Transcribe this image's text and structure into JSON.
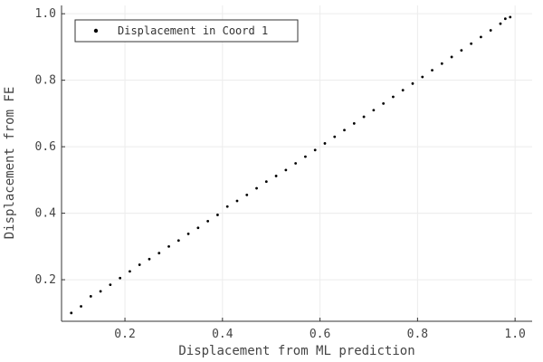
{
  "chart_data": {
    "type": "scatter",
    "title": "",
    "xlabel": "Displacement from ML prediction",
    "ylabel": "Displacement from FE",
    "xlim": [
      0.07,
      1.035
    ],
    "ylim": [
      0.075,
      1.025
    ],
    "xticks": [
      0.2,
      0.4,
      0.6,
      0.8,
      1.0
    ],
    "xtick_labels": [
      "0.2",
      "0.4",
      "0.6",
      "0.8",
      "1.0"
    ],
    "yticks": [
      0.2,
      0.4,
      0.6,
      0.8,
      1.0
    ],
    "ytick_labels": [
      "0.2",
      "0.4",
      "0.6",
      "0.8",
      "1.0"
    ],
    "grid": true,
    "legend_position": "top-left",
    "series": [
      {
        "name": "Displacement in Coord 1",
        "color": "#000000",
        "marker": "point",
        "points": [
          [
            0.09,
            0.1
          ],
          [
            0.11,
            0.12
          ],
          [
            0.13,
            0.15
          ],
          [
            0.15,
            0.165
          ],
          [
            0.17,
            0.185
          ],
          [
            0.19,
            0.205
          ],
          [
            0.21,
            0.225
          ],
          [
            0.23,
            0.245
          ],
          [
            0.25,
            0.262
          ],
          [
            0.27,
            0.28
          ],
          [
            0.29,
            0.3
          ],
          [
            0.31,
            0.318
          ],
          [
            0.33,
            0.338
          ],
          [
            0.35,
            0.356
          ],
          [
            0.37,
            0.376
          ],
          [
            0.39,
            0.395
          ],
          [
            0.41,
            0.42
          ],
          [
            0.43,
            0.437
          ],
          [
            0.45,
            0.455
          ],
          [
            0.47,
            0.475
          ],
          [
            0.49,
            0.495
          ],
          [
            0.51,
            0.512
          ],
          [
            0.53,
            0.53
          ],
          [
            0.55,
            0.55
          ],
          [
            0.57,
            0.57
          ],
          [
            0.59,
            0.59
          ],
          [
            0.61,
            0.61
          ],
          [
            0.63,
            0.63
          ],
          [
            0.65,
            0.65
          ],
          [
            0.67,
            0.67
          ],
          [
            0.69,
            0.69
          ],
          [
            0.71,
            0.71
          ],
          [
            0.73,
            0.73
          ],
          [
            0.75,
            0.75
          ],
          [
            0.77,
            0.77
          ],
          [
            0.79,
            0.79
          ],
          [
            0.81,
            0.81
          ],
          [
            0.83,
            0.83
          ],
          [
            0.85,
            0.85
          ],
          [
            0.87,
            0.87
          ],
          [
            0.89,
            0.89
          ],
          [
            0.91,
            0.91
          ],
          [
            0.93,
            0.93
          ],
          [
            0.95,
            0.95
          ],
          [
            0.97,
            0.97
          ],
          [
            0.98,
            0.985
          ],
          [
            0.99,
            0.99
          ]
        ]
      }
    ]
  }
}
